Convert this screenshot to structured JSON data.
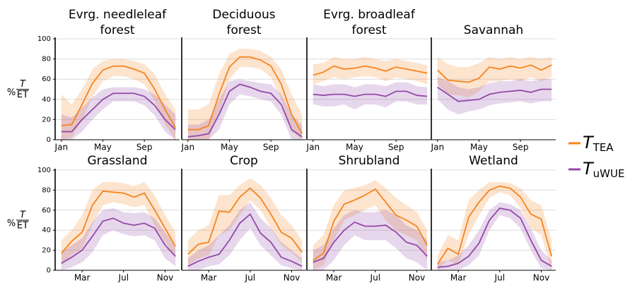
{
  "chart_data": [
    {
      "type": "line",
      "title": [
        "Evrg. needleleaf",
        "forest"
      ],
      "ylabel": {
        "prefix": "%",
        "numerator": "T",
        "denominator": "ET"
      },
      "x": [
        1,
        2,
        3,
        4,
        5,
        6,
        7,
        8,
        9,
        10,
        11,
        12
      ],
      "xlim": [
        0.4,
        12.4
      ],
      "xticks": [
        {
          "value": 1,
          "label": "Jan"
        },
        {
          "value": 5,
          "label": "May"
        },
        {
          "value": 9,
          "label": "Sep"
        }
      ],
      "ylim": [
        0,
        100
      ],
      "yticks": [
        0,
        20,
        40,
        60,
        80,
        100
      ],
      "grid": true,
      "series": [
        {
          "name": "T",
          "subscript": "TEA",
          "color": "#f5841f",
          "values": [
            14,
            15,
            35,
            56,
            69,
            73,
            73,
            70,
            66,
            50,
            30,
            12
          ],
          "lower": [
            0,
            2,
            20,
            42,
            58,
            63,
            63,
            60,
            55,
            38,
            15,
            0
          ],
          "upper": [
            45,
            35,
            50,
            70,
            78,
            80,
            80,
            78,
            75,
            65,
            45,
            30
          ]
        },
        {
          "name": "T",
          "subscript": "uWUE",
          "color": "#9349a8",
          "values": [
            8,
            8,
            20,
            30,
            40,
            46,
            46,
            46,
            43,
            34,
            20,
            10
          ],
          "lower": [
            0,
            0,
            8,
            20,
            30,
            38,
            38,
            38,
            34,
            24,
            8,
            0
          ],
          "upper": [
            25,
            22,
            32,
            42,
            50,
            52,
            52,
            52,
            50,
            45,
            35,
            25
          ]
        }
      ]
    },
    {
      "type": "line",
      "title": [
        "Deciduous",
        "forest"
      ],
      "x": [
        1,
        2,
        3,
        4,
        5,
        6,
        7,
        8,
        9,
        10,
        11,
        12
      ],
      "xlim": [
        0.4,
        12.4
      ],
      "xticks": [
        {
          "value": 1,
          "label": "Jan"
        },
        {
          "value": 5,
          "label": "May"
        },
        {
          "value": 9,
          "label": "Sep"
        }
      ],
      "ylim": [
        0,
        100
      ],
      "yticks": [
        0,
        20,
        40,
        60,
        80,
        100
      ],
      "grid": true,
      "series": [
        {
          "name": "T",
          "subscript": "TEA",
          "color": "#f5841f",
          "values": [
            10,
            10,
            14,
            45,
            72,
            82,
            82,
            79,
            73,
            55,
            25,
            6
          ],
          "lower": [
            0,
            0,
            0,
            25,
            60,
            72,
            72,
            70,
            62,
            40,
            8,
            0
          ],
          "upper": [
            30,
            30,
            35,
            65,
            85,
            90,
            90,
            88,
            82,
            70,
            45,
            25
          ]
        },
        {
          "name": "T",
          "subscript": "uWUE",
          "color": "#9349a8",
          "values": [
            3,
            4,
            6,
            25,
            48,
            55,
            52,
            48,
            46,
            35,
            10,
            3
          ],
          "lower": [
            0,
            0,
            0,
            10,
            35,
            45,
            43,
            40,
            38,
            25,
            0,
            0
          ],
          "upper": [
            15,
            15,
            20,
            40,
            58,
            60,
            58,
            56,
            55,
            45,
            25,
            15
          ]
        }
      ]
    },
    {
      "type": "line",
      "title": [
        "Evrg. broadleaf",
        "forest"
      ],
      "x": [
        1,
        2,
        3,
        4,
        5,
        6,
        7,
        8,
        9,
        10,
        11,
        12
      ],
      "xlim": [
        0.4,
        12.4
      ],
      "xticks": [
        {
          "value": 1,
          "label": "Jan"
        },
        {
          "value": 5,
          "label": "May"
        },
        {
          "value": 9,
          "label": "Sep"
        }
      ],
      "ylim": [
        0,
        100
      ],
      "yticks": [
        0,
        20,
        40,
        60,
        80,
        100
      ],
      "grid": true,
      "series": [
        {
          "name": "T",
          "subscript": "TEA",
          "color": "#f5841f",
          "values": [
            64,
            67,
            73,
            70,
            71,
            73,
            71,
            68,
            72,
            70,
            68,
            66
          ],
          "lower": [
            55,
            58,
            62,
            60,
            62,
            63,
            62,
            58,
            62,
            60,
            58,
            55
          ],
          "upper": [
            75,
            76,
            82,
            80,
            80,
            82,
            80,
            78,
            80,
            78,
            76,
            74
          ]
        },
        {
          "name": "T",
          "subscript": "uWUE",
          "color": "#9349a8",
          "values": [
            45,
            44,
            45,
            45,
            43,
            45,
            45,
            43,
            48,
            48,
            44,
            43
          ],
          "lower": [
            35,
            33,
            33,
            35,
            30,
            35,
            35,
            32,
            38,
            38,
            35,
            35
          ],
          "upper": [
            55,
            53,
            55,
            55,
            52,
            55,
            55,
            53,
            57,
            57,
            53,
            52
          ]
        }
      ]
    },
    {
      "type": "line",
      "title": [
        "Savannah"
      ],
      "x": [
        1,
        2,
        3,
        4,
        5,
        6,
        7,
        8,
        9,
        10,
        11,
        12
      ],
      "xlim": [
        0.4,
        12.4
      ],
      "xticks": [
        {
          "value": 1,
          "label": "Jan"
        },
        {
          "value": 5,
          "label": "May"
        },
        {
          "value": 9,
          "label": "Sep"
        }
      ],
      "ylim": [
        0,
        100
      ],
      "yticks": [
        0,
        20,
        40,
        60,
        80,
        100
      ],
      "grid": true,
      "series": [
        {
          "name": "T",
          "subscript": "TEA",
          "color": "#f5841f",
          "values": [
            69,
            59,
            58,
            57,
            61,
            72,
            70,
            73,
            71,
            74,
            69,
            74
          ],
          "lower": [
            55,
            45,
            44,
            42,
            48,
            58,
            58,
            60,
            58,
            62,
            58,
            62
          ],
          "upper": [
            82,
            75,
            72,
            72,
            76,
            82,
            80,
            82,
            80,
            82,
            80,
            82
          ]
        },
        {
          "name": "T",
          "subscript": "uWUE",
          "color": "#9349a8",
          "values": [
            52,
            45,
            38,
            39,
            40,
            45,
            47,
            48,
            49,
            47,
            50,
            50
          ],
          "lower": [
            40,
            30,
            25,
            28,
            30,
            34,
            36,
            37,
            38,
            36,
            38,
            38
          ],
          "upper": [
            62,
            58,
            52,
            50,
            52,
            56,
            58,
            58,
            60,
            58,
            60,
            60
          ]
        }
      ]
    },
    {
      "type": "line",
      "title": [
        "Grassland"
      ],
      "ylabel": {
        "prefix": "%",
        "numerator": "T",
        "denominator": "ET"
      },
      "x": [
        1,
        2,
        3,
        4,
        5,
        6,
        7,
        8,
        9,
        10,
        11,
        12
      ],
      "xlim": [
        0.4,
        12.4
      ],
      "xticks": [
        {
          "value": 3,
          "label": "Mar"
        },
        {
          "value": 7,
          "label": "Jul"
        },
        {
          "value": 11,
          "label": "Nov"
        }
      ],
      "ylim": [
        0,
        100
      ],
      "yticks": [
        0,
        20,
        40,
        60,
        80,
        100
      ],
      "grid": true,
      "series": [
        {
          "name": "T",
          "subscript": "TEA",
          "color": "#f5841f",
          "values": [
            17,
            29,
            38,
            65,
            79,
            78,
            77,
            73,
            77,
            60,
            42,
            24
          ],
          "lower": [
            5,
            15,
            22,
            45,
            65,
            68,
            66,
            63,
            65,
            45,
            28,
            12
          ],
          "upper": [
            30,
            40,
            55,
            80,
            88,
            88,
            87,
            84,
            88,
            75,
            55,
            38
          ]
        },
        {
          "name": "T",
          "subscript": "uWUE",
          "color": "#9349a8",
          "values": [
            7,
            13,
            20,
            34,
            49,
            52,
            47,
            45,
            47,
            42,
            25,
            14
          ],
          "lower": [
            0,
            3,
            8,
            18,
            35,
            40,
            36,
            34,
            35,
            30,
            12,
            4
          ],
          "upper": [
            18,
            25,
            32,
            48,
            60,
            62,
            58,
            57,
            58,
            52,
            38,
            25
          ]
        }
      ]
    },
    {
      "type": "line",
      "title": [
        "Crop"
      ],
      "x": [
        1,
        2,
        3,
        4,
        5,
        6,
        7,
        8,
        9,
        10,
        11,
        12
      ],
      "xlim": [
        0.4,
        12.4
      ],
      "xticks": [
        {
          "value": 3,
          "label": "Mar"
        },
        {
          "value": 7,
          "label": "Jul"
        },
        {
          "value": 11,
          "label": "Nov"
        }
      ],
      "ylim": [
        0,
        100
      ],
      "yticks": [
        0,
        20,
        40,
        60,
        80,
        100
      ],
      "grid": true,
      "series": [
        {
          "name": "T",
          "subscript": "TEA",
          "color": "#f5841f",
          "values": [
            16,
            26,
            28,
            59,
            58,
            73,
            82,
            72,
            56,
            38,
            32,
            18
          ],
          "lower": [
            5,
            12,
            15,
            35,
            40,
            55,
            70,
            60,
            42,
            25,
            18,
            8
          ],
          "upper": [
            30,
            40,
            45,
            75,
            75,
            85,
            92,
            85,
            72,
            55,
            45,
            30
          ]
        },
        {
          "name": "T",
          "subscript": "uWUE",
          "color": "#9349a8",
          "values": [
            4,
            9,
            13,
            16,
            30,
            47,
            56,
            37,
            28,
            13,
            9,
            4
          ],
          "lower": [
            0,
            0,
            4,
            6,
            15,
            30,
            42,
            25,
            15,
            5,
            2,
            0
          ],
          "upper": [
            12,
            20,
            25,
            35,
            45,
            60,
            68,
            52,
            42,
            28,
            20,
            12
          ]
        }
      ]
    },
    {
      "type": "line",
      "title": [
        "Shrubland"
      ],
      "x": [
        1,
        2,
        3,
        4,
        5,
        6,
        7,
        8,
        9,
        10,
        11,
        12
      ],
      "xlim": [
        0.4,
        12.4
      ],
      "xticks": [
        {
          "value": 3,
          "label": "Mar"
        },
        {
          "value": 7,
          "label": "Jul"
        },
        {
          "value": 11,
          "label": "Nov"
        }
      ],
      "ylim": [
        0,
        100
      ],
      "yticks": [
        0,
        20,
        40,
        60,
        80,
        100
      ],
      "grid": true,
      "series": [
        {
          "name": "T",
          "subscript": "TEA",
          "color": "#f5841f",
          "values": [
            10,
            17,
            49,
            66,
            70,
            75,
            81,
            68,
            55,
            50,
            44,
            25
          ],
          "lower": [
            0,
            5,
            30,
            50,
            55,
            60,
            65,
            50,
            40,
            35,
            30,
            10
          ],
          "upper": [
            25,
            35,
            65,
            80,
            82,
            85,
            90,
            82,
            72,
            65,
            58,
            40
          ]
        },
        {
          "name": "T",
          "subscript": "uWUE",
          "color": "#9349a8",
          "values": [
            8,
            12,
            28,
            40,
            48,
            44,
            44,
            45,
            38,
            28,
            25,
            14
          ],
          "lower": [
            0,
            0,
            10,
            25,
            35,
            30,
            30,
            30,
            22,
            12,
            8,
            0
          ],
          "upper": [
            20,
            25,
            42,
            55,
            60,
            58,
            58,
            60,
            55,
            45,
            40,
            30
          ]
        }
      ]
    },
    {
      "type": "line",
      "title": [
        "Wetland"
      ],
      "x": [
        1,
        2,
        3,
        4,
        5,
        6,
        7,
        8,
        9,
        10,
        11,
        12
      ],
      "xlim": [
        0.4,
        12.4
      ],
      "xticks": [
        {
          "value": 3,
          "label": "Mar"
        },
        {
          "value": 7,
          "label": "Jul"
        },
        {
          "value": 11,
          "label": "Nov"
        }
      ],
      "ylim": [
        0,
        100
      ],
      "yticks": [
        0,
        20,
        40,
        60,
        80,
        100
      ],
      "grid": true,
      "series": [
        {
          "name": "T",
          "subscript": "TEA",
          "color": "#f5841f",
          "values": [
            6,
            22,
            16,
            53,
            68,
            80,
            84,
            82,
            73,
            56,
            51,
            14
          ],
          "lower": [
            0,
            10,
            5,
            35,
            55,
            72,
            78,
            75,
            62,
            42,
            35,
            0
          ],
          "upper": [
            15,
            35,
            30,
            70,
            80,
            88,
            88,
            87,
            82,
            70,
            65,
            30
          ]
        },
        {
          "name": "T",
          "subscript": "uWUE",
          "color": "#9349a8",
          "values": [
            3,
            4,
            7,
            14,
            27,
            50,
            62,
            60,
            52,
            30,
            10,
            4
          ],
          "lower": [
            0,
            0,
            0,
            5,
            15,
            40,
            55,
            52,
            42,
            20,
            2,
            0
          ],
          "upper": [
            8,
            10,
            15,
            25,
            40,
            60,
            68,
            66,
            60,
            42,
            20,
            10
          ]
        }
      ]
    }
  ]
}
